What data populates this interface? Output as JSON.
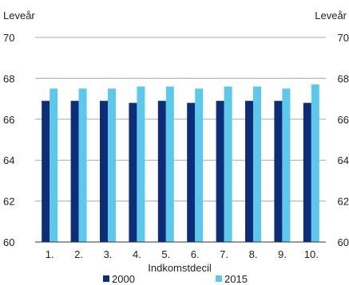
{
  "chart_data": {
    "type": "bar",
    "title": "",
    "ylabel_left": "Leveår",
    "ylabel_right": "Leveår",
    "xlabel": "Indkomstdecil",
    "categories": [
      "1.",
      "2.",
      "3.",
      "4.",
      "5.",
      "6.",
      "7.",
      "8.",
      "9.",
      "10."
    ],
    "ylim": [
      60,
      70
    ],
    "yticks": [
      60,
      62,
      64,
      66,
      68,
      70
    ],
    "grid": true,
    "legend_position": "bottom",
    "series": [
      {
        "name": "2000",
        "color": "#0c2d78",
        "values": [
          66.9,
          66.9,
          66.9,
          66.8,
          66.9,
          66.8,
          66.9,
          66.9,
          66.9,
          66.8
        ]
      },
      {
        "name": "2015",
        "color": "#5bc8ec",
        "values": [
          67.5,
          67.5,
          67.5,
          67.6,
          67.6,
          67.5,
          67.6,
          67.6,
          67.5,
          67.7
        ]
      }
    ]
  }
}
